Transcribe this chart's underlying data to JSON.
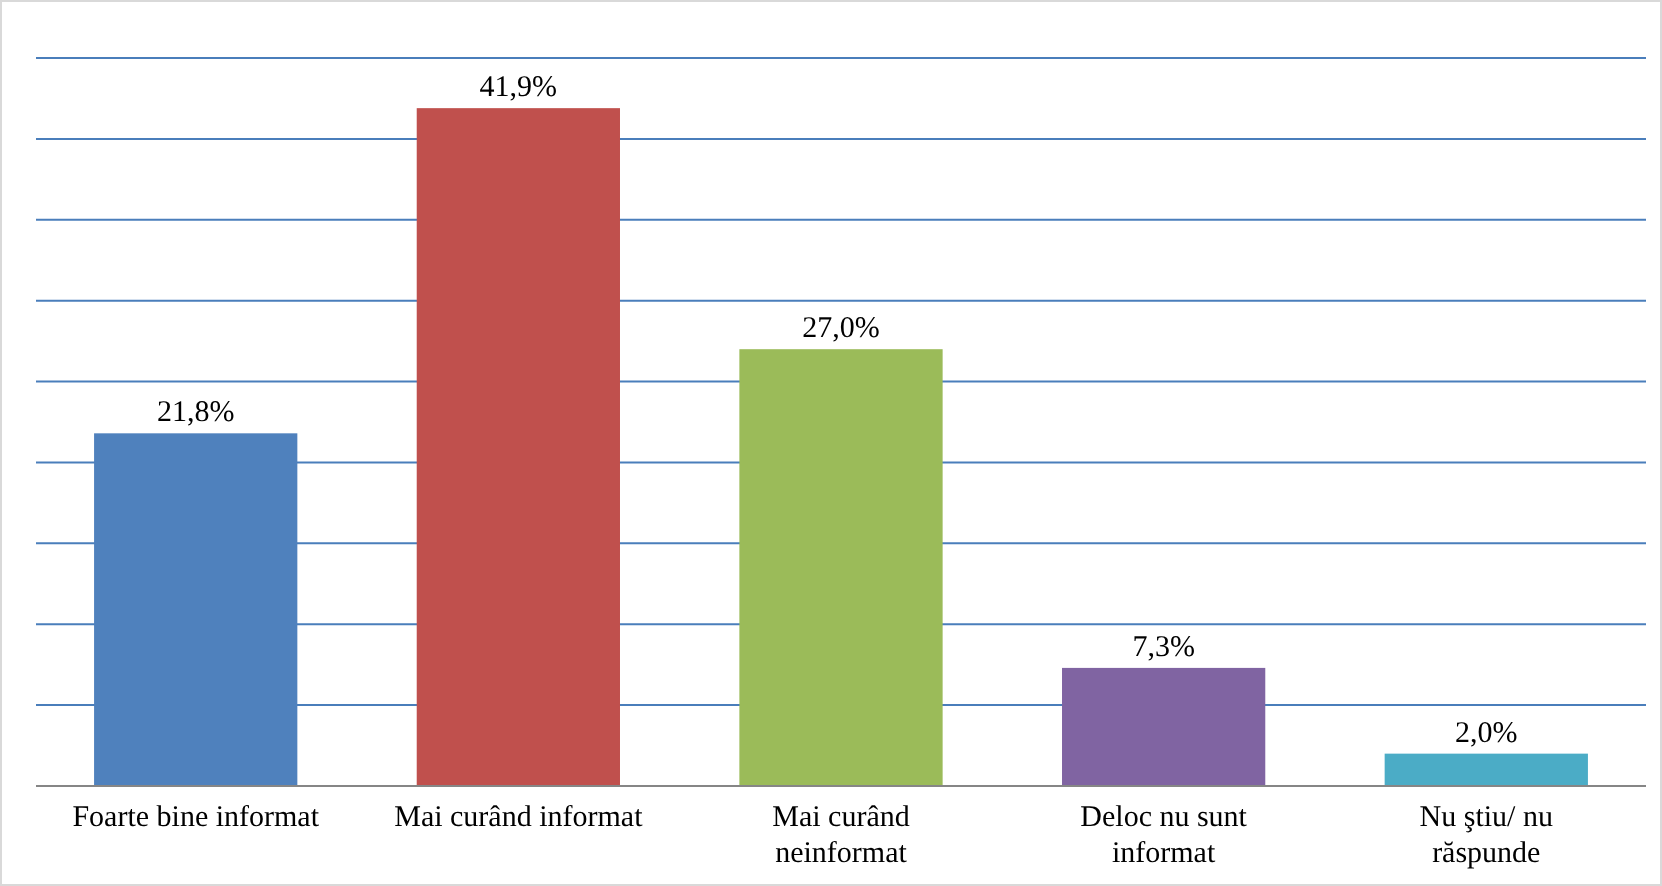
{
  "chart_data": {
    "type": "bar",
    "categories": [
      "Foarte bine informat",
      "Mai curând informat",
      "Mai curând\nneinformat",
      "Deloc nu sunt\ninformat",
      "Nu ştiu/ nu\nrăspunde"
    ],
    "values": [
      21.8,
      41.9,
      27.0,
      7.3,
      2.0
    ],
    "colors": [
      "#4f81bd",
      "#c0504d",
      "#9bbb59",
      "#8064a2",
      "#4bacc6"
    ],
    "value_labels": [
      "21,8%",
      "41,9%",
      "27,0%",
      "7,3%",
      "2,0%"
    ],
    "ylim": [
      0,
      45
    ],
    "yticks": [
      {
        "value": 0,
        "label": null
      },
      {
        "value": 5,
        "label": null
      },
      {
        "value": 10,
        "label": null
      },
      {
        "value": 15,
        "label": null
      },
      {
        "value": 20,
        "label": null
      },
      {
        "value": 25,
        "label": null
      },
      {
        "value": 30,
        "label": null
      },
      {
        "value": 35,
        "label": null
      },
      {
        "value": 40,
        "label": null
      },
      {
        "value": 45,
        "label": null
      }
    ],
    "grid": "y",
    "tick_labels": "x"
  }
}
